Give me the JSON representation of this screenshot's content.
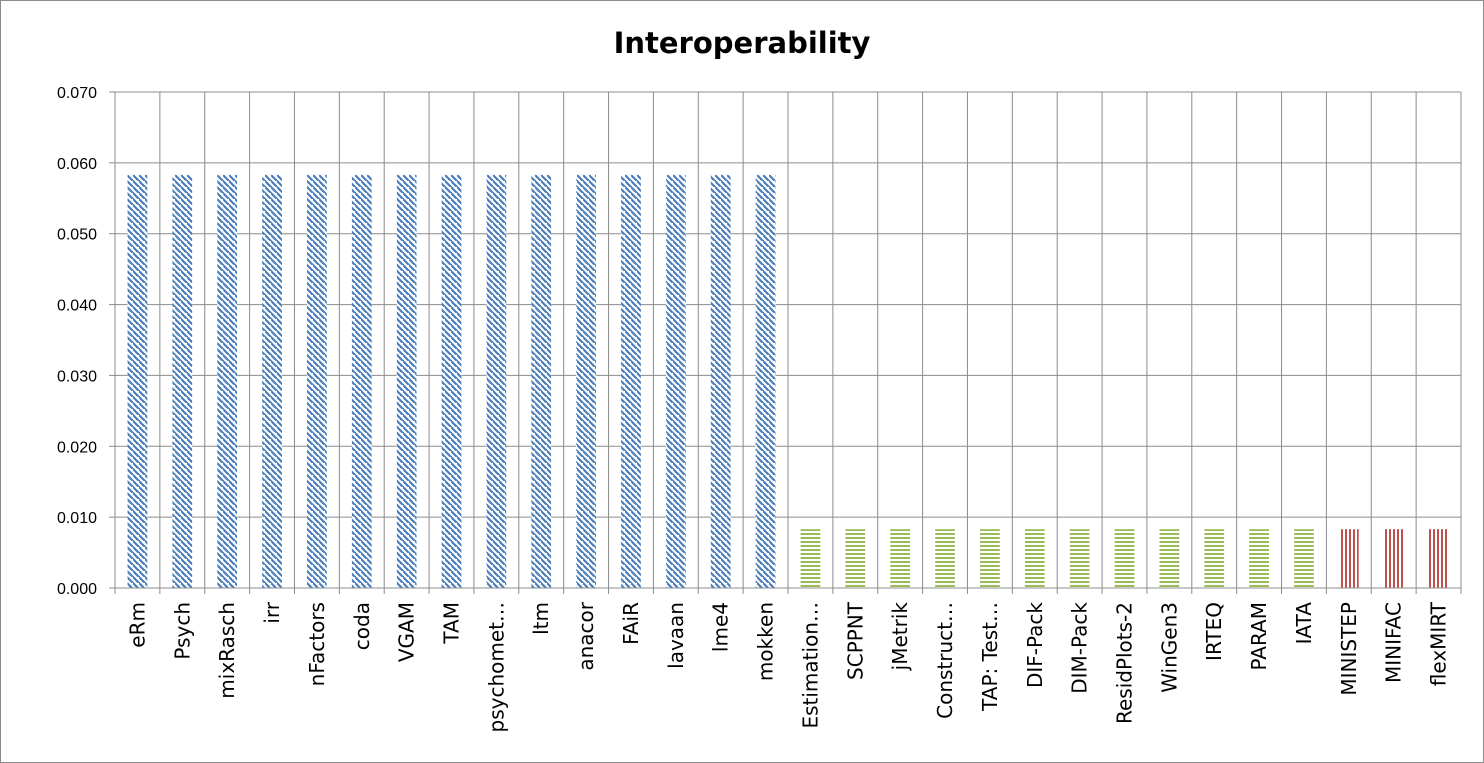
{
  "chart_data": {
    "type": "bar",
    "title": "Interoperability",
    "xlabel": "",
    "ylabel": "",
    "ylim": [
      0,
      0.07
    ],
    "yticks": [
      "0.000",
      "0.010",
      "0.020",
      "0.030",
      "0.040",
      "0.050",
      "0.060",
      "0.070"
    ],
    "grid": true,
    "legend": "none",
    "categories": [
      "eRm",
      "Psych",
      "mixRasch",
      "irr",
      "nFactors",
      "coda",
      "VGAM",
      "TAM",
      "psychomet…",
      "ltm",
      "anacor",
      "FAiR",
      "lavaan",
      "lme4",
      "mokken",
      "Estimation…",
      "SCPPNT",
      "jMetrik",
      "Construct…",
      "TAP: Test…",
      "DIF-Pack",
      "DIM-Pack",
      "ResidPlots-2",
      "WinGen3",
      "IRTEQ",
      "PARAM",
      "IATA",
      "MINISTEP",
      "MINIFAC",
      "flexMIRT"
    ],
    "values": [
      0.0583,
      0.0583,
      0.0583,
      0.0583,
      0.0583,
      0.0583,
      0.0583,
      0.0583,
      0.0583,
      0.0583,
      0.0583,
      0.0583,
      0.0583,
      0.0583,
      0.0583,
      0.0083,
      0.0083,
      0.0083,
      0.0083,
      0.0083,
      0.0083,
      0.0083,
      0.0083,
      0.0083,
      0.0083,
      0.0083,
      0.0083,
      0.0083,
      0.0083,
      0.0083
    ],
    "bar_styles": [
      "blue-diagonal",
      "blue-diagonal",
      "blue-diagonal",
      "blue-diagonal",
      "blue-diagonal",
      "blue-diagonal",
      "blue-diagonal",
      "blue-diagonal",
      "blue-diagonal",
      "blue-diagonal",
      "blue-diagonal",
      "blue-diagonal",
      "blue-diagonal",
      "blue-diagonal",
      "blue-diagonal",
      "green-horizontal",
      "green-horizontal",
      "green-horizontal",
      "green-horizontal",
      "green-horizontal",
      "green-horizontal",
      "green-horizontal",
      "green-horizontal",
      "green-horizontal",
      "green-horizontal",
      "green-horizontal",
      "green-horizontal",
      "red-vertical",
      "red-vertical",
      "red-vertical"
    ],
    "colors": {
      "blue": "#4a7ebb",
      "green": "#9bbb59",
      "red": "#c0504d",
      "grid": "#8c8c8c"
    }
  }
}
